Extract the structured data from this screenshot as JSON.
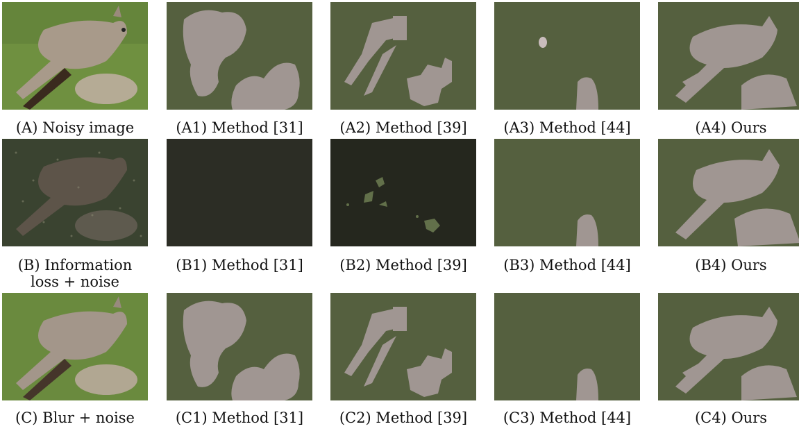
{
  "colors": {
    "segmentation_background": "#55603f",
    "segmentation_foreground": "#a09692",
    "noise_background": "#25271e",
    "noise_foreground": "#62704a",
    "grass": "#6f9040"
  },
  "rows": [
    {
      "row_id": "A",
      "captions": [
        "(A) Noisy image",
        "(A1) Method [31]",
        "(A2) Method [39]",
        "(A3) Method [44]",
        "(A4) Ours"
      ]
    },
    {
      "row_id": "B",
      "captions": [
        "(B) Information loss + noise",
        "(B1) Method [31]",
        "(B2) Method [39]",
        "(B3) Method [44]",
        "(B4) Ours"
      ],
      "caption_lines": [
        "(B) Information",
        "loss + noise"
      ]
    },
    {
      "row_id": "C",
      "captions": [
        "(C) Blur + noise",
        "(C1) Method [31]",
        "(C2) Method [39]",
        "(C3) Method [44]",
        "(C4) Ours"
      ]
    }
  ]
}
